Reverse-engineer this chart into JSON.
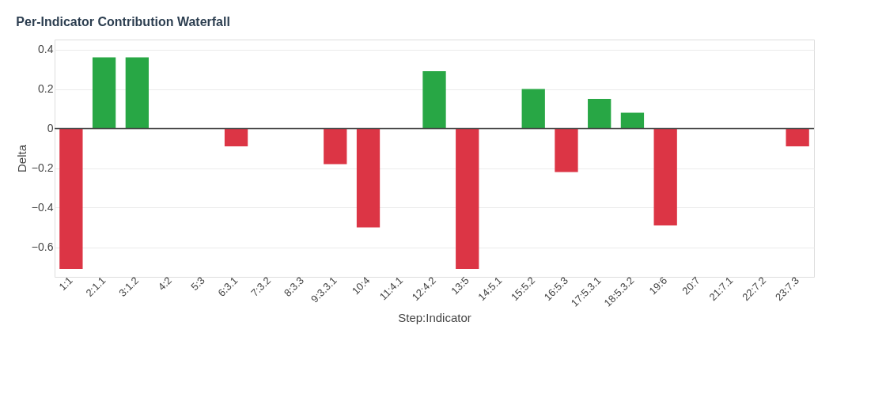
{
  "chart_data": {
    "type": "bar",
    "title": "Per-Indicator Contribution Waterfall",
    "xlabel": "Step:Indicator",
    "ylabel": "Delta",
    "categories": [
      "1:1",
      "2:1.1",
      "3:1.2",
      "4:2",
      "5:3",
      "6:3.1",
      "7:3.2",
      "8:3.3",
      "9:3.3.1",
      "10:4",
      "11:4.1",
      "12:4.2",
      "13:5",
      "14:5.1",
      "15:5.2",
      "16:5.3",
      "17:5.3.1",
      "18:5.3.2",
      "19:6",
      "20:7",
      "21:7.1",
      "22:7.2",
      "23:7.3"
    ],
    "values": [
      -0.71,
      0.36,
      0.36,
      0,
      0,
      -0.09,
      0,
      0,
      -0.18,
      -0.5,
      0,
      0.29,
      -0.71,
      0,
      0.2,
      -0.22,
      0.15,
      0.08,
      -0.49,
      0,
      0,
      0,
      -0.09
    ],
    "colors": [
      "#dc3545",
      "#28a745",
      "#28a745",
      "#28a745",
      "#28a745",
      "#dc3545",
      "#28a745",
      "#28a745",
      "#dc3545",
      "#dc3545",
      "#28a745",
      "#28a745",
      "#dc3545",
      "#28a745",
      "#28a745",
      "#dc3545",
      "#28a745",
      "#28a745",
      "#dc3545",
      "#28a745",
      "#28a745",
      "#28a745",
      "#dc3545"
    ],
    "ylim": [
      -0.75,
      0.45
    ],
    "yticks": [
      -0.6,
      -0.4,
      -0.2,
      0,
      0.2,
      0.4
    ],
    "ref_lines": [
      {
        "axis": "y",
        "value": 0,
        "color": "#444444"
      }
    ],
    "grid": "y"
  }
}
